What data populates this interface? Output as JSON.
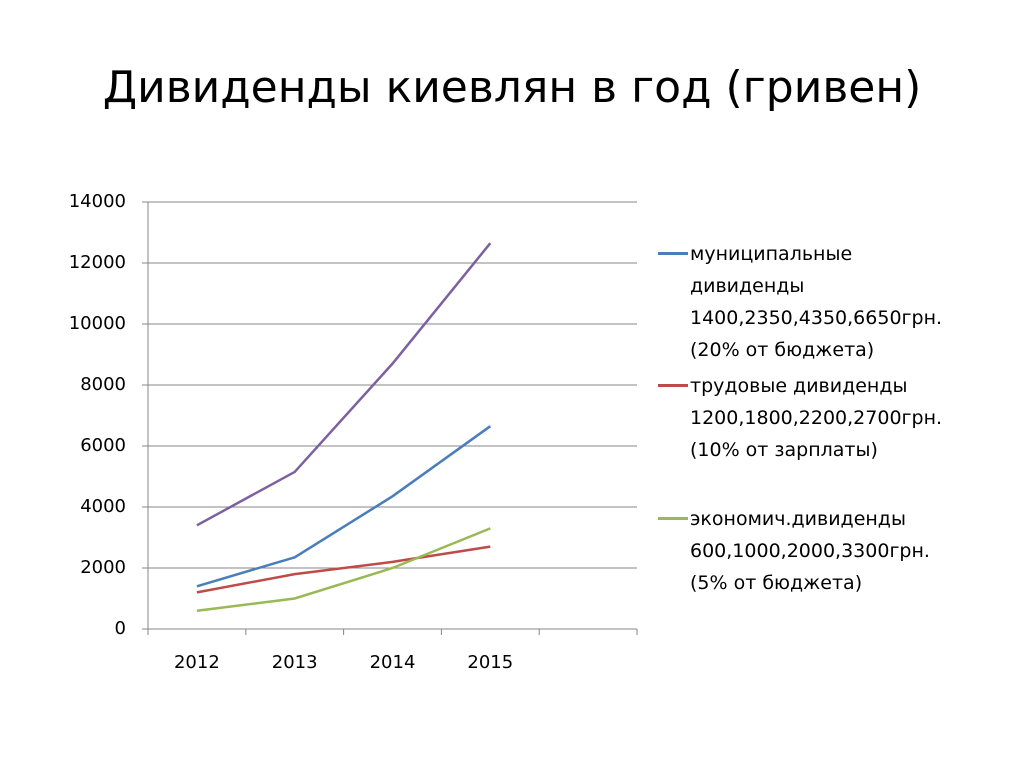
{
  "chart_data": {
    "type": "line",
    "title": "Дивиденды киевлян в год (гривен)",
    "categories": [
      "2012",
      "2013",
      "2014",
      "2015",
      null
    ],
    "series": [
      {
        "name": "муниципальные\nдивиденды\n1400,2350,4350,6650грн.\n(20% от бюджета)",
        "color": "#4a7ebb",
        "values": [
          1400,
          2350,
          4350,
          6650,
          null
        ]
      },
      {
        "name": "трудовые дивиденды\n1200,1800,2200,2700грн.\n(10% от зарплаты)",
        "color": "#be4b48",
        "values": [
          1200,
          1800,
          2200,
          2700,
          null
        ]
      },
      {
        "name": "экономич.дивиденды\n600,1000,2000,3300грн.\n(5% от бюджета)",
        "color": "#98b954",
        "values": [
          600,
          1000,
          2000,
          3300,
          null
        ]
      },
      {
        "color": "#7d60a0",
        "values": [
          3400,
          5150,
          8700,
          12650,
          null
        ]
      }
    ],
    "ylim": [
      0,
      14000
    ],
    "yticks": [
      0,
      2000,
      4000,
      6000,
      8000,
      10000,
      12000,
      14000
    ],
    "grid": true
  }
}
